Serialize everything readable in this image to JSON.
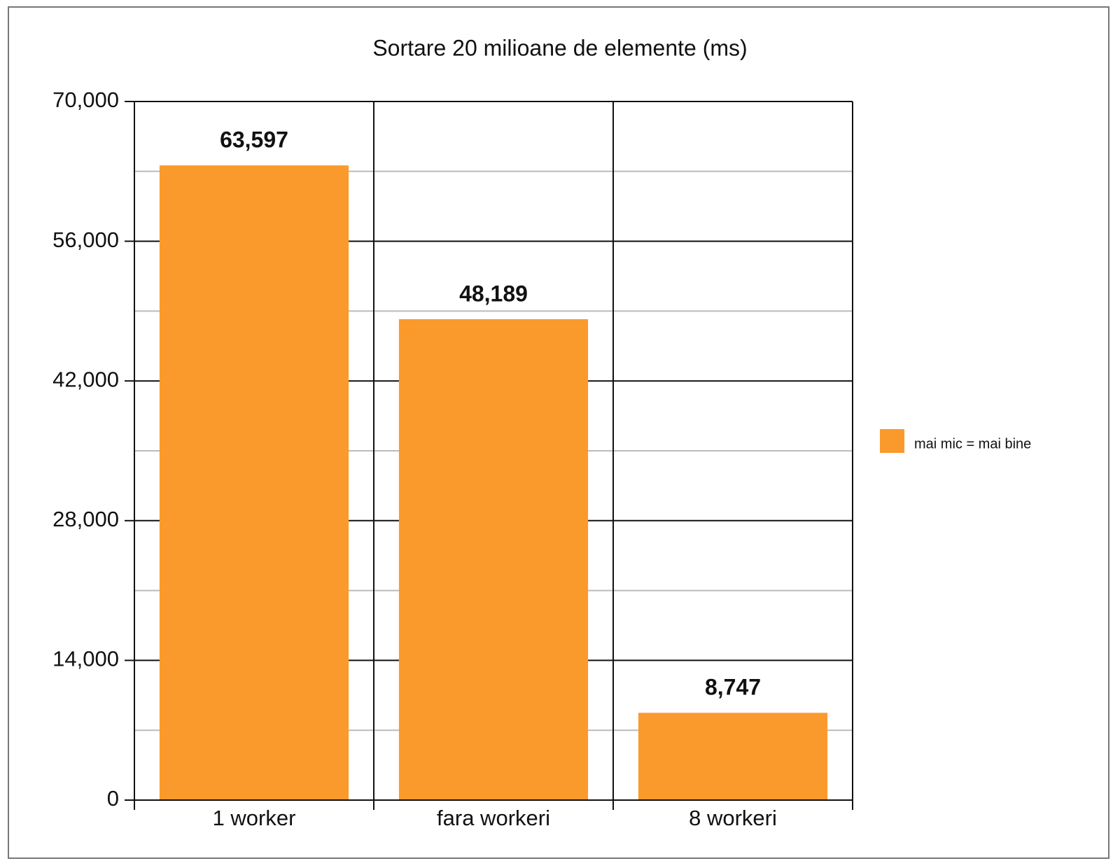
{
  "chart_data": {
    "type": "bar",
    "title": "Sortare 20 milioane de elemente (ms)",
    "categories": [
      "1 worker",
      "fara workeri",
      "8 workeri"
    ],
    "series": [
      {
        "name": "mai mic = mai bine",
        "color": "#fb9a2c",
        "values": [
          63597,
          48189,
          8747
        ],
        "value_labels": [
          "63,597",
          "48,189",
          "8,747"
        ]
      }
    ],
    "ylim": [
      0,
      70000
    ],
    "yticks": [
      0,
      {
        "value": 14000,
        "label": "14,000"
      },
      {
        "value": 28000,
        "label": "28,000"
      },
      {
        "value": 42000,
        "label": "42,000"
      },
      {
        "value": 56000,
        "label": "56,000"
      },
      {
        "value": 70000,
        "label": "70,000"
      }
    ],
    "minor_yticks": [
      7000,
      21000,
      35000,
      49000,
      63000
    ],
    "grid": true,
    "legend": "right"
  }
}
